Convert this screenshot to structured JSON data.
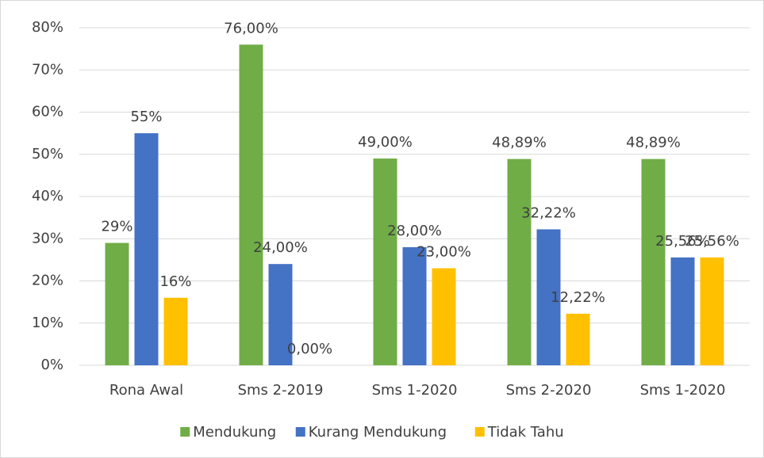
{
  "chart_data": {
    "type": "bar",
    "categories": [
      "Rona Awal",
      "Sms 2-2019",
      "Sms 1-2020",
      "Sms 2-2020",
      "Sms 1-2020"
    ],
    "series": [
      {
        "name": "Mendukung",
        "color": "#70ad47",
        "values": [
          29,
          76,
          49,
          48.89,
          48.89
        ],
        "value_labels": [
          "29%",
          "76,00%",
          "49,00%",
          "48,89%",
          "48,89%"
        ]
      },
      {
        "name": "Kurang Mendukung",
        "color": "#4472c4",
        "values": [
          55,
          24,
          28,
          32.22,
          25.56
        ],
        "value_labels": [
          "55%",
          "24,00%",
          "28,00%",
          "32,22%",
          "25,56%"
        ]
      },
      {
        "name": "Tidak Tahu",
        "color": "#ffc000",
        "values": [
          16,
          0,
          23,
          12.22,
          25.56
        ],
        "value_labels": [
          "16%",
          "0,00%",
          "23,00%",
          "12,22%",
          "25,56%"
        ]
      }
    ],
    "ylim": [
      0,
      80
    ],
    "yticks": [
      {
        "value": 0,
        "label": "0%"
      },
      {
        "value": 10,
        "label": "10%"
      },
      {
        "value": 20,
        "label": "20%"
      },
      {
        "value": 30,
        "label": "30%"
      },
      {
        "value": 40,
        "label": "40%"
      },
      {
        "value": 50,
        "label": "50%"
      },
      {
        "value": 60,
        "label": "60%"
      },
      {
        "value": 70,
        "label": "70%"
      },
      {
        "value": 80,
        "label": "80%"
      }
    ],
    "grid": true,
    "legend": "bottom"
  }
}
